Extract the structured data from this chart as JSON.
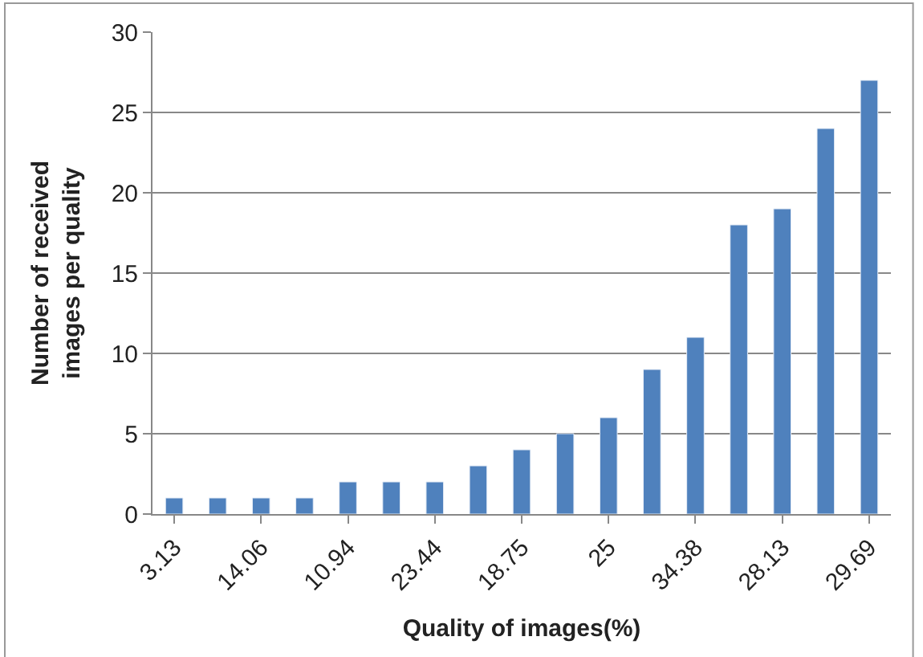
{
  "chart_data": {
    "type": "bar",
    "xlabel": "Quality of images(%)",
    "ylabel": "Number of received images per quality",
    "categories": [
      "3.13",
      null,
      "14.06",
      null,
      "10.94",
      null,
      "23.44",
      null,
      "18.75",
      null,
      "25",
      null,
      "34.38",
      null,
      "28.13",
      null,
      "29.69"
    ],
    "values": [
      1,
      1,
      1,
      1,
      2,
      2,
      2,
      3,
      4,
      5,
      6,
      9,
      11,
      18,
      19,
      24,
      27
    ],
    "color": "#4f81bd",
    "ylim": [
      0,
      30
    ],
    "yticks": [
      0,
      5,
      10,
      15,
      20,
      25,
      30
    ],
    "grid": "y",
    "legend": false
  }
}
